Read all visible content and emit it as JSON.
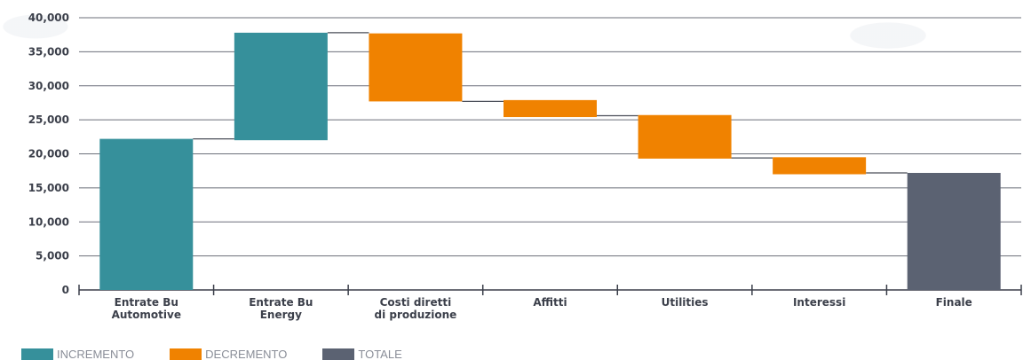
{
  "chart_data": {
    "type": "waterfall",
    "y_ticks": [
      "0",
      "5,000",
      "10,000",
      "15,000",
      "20,000",
      "25,000",
      "30,000",
      "35,000",
      "40,000"
    ],
    "ylim": [
      0,
      40000
    ],
    "grid": true,
    "categories": [
      [
        "Entrate Bu",
        "Automotive"
      ],
      [
        "Entrate Bu",
        "Energy"
      ],
      [
        "Costi diretti",
        "di produzione"
      ],
      [
        "Affitti"
      ],
      [
        "Utilities"
      ],
      [
        "Interessi"
      ],
      [
        "Finale"
      ]
    ],
    "bars": [
      {
        "kind": "increment",
        "start": 0,
        "end": 22200
      },
      {
        "kind": "increment",
        "start": 22000,
        "end": 37800
      },
      {
        "kind": "decrement",
        "start": 37700,
        "end": 27700
      },
      {
        "kind": "decrement",
        "start": 27900,
        "end": 25400
      },
      {
        "kind": "decrement",
        "start": 25700,
        "end": 19300
      },
      {
        "kind": "decrement",
        "start": 19500,
        "end": 17000
      },
      {
        "kind": "total",
        "start": 0,
        "end": 17200
      }
    ],
    "connectors": [
      22200,
      37800,
      27700,
      25600,
      19400,
      17200
    ]
  },
  "colors": {
    "increment": "#36909b",
    "decrement": "#f08200",
    "total": "#5b6272",
    "grid": "#6b6f7a",
    "axis": "#3b3f4a"
  },
  "legend": [
    {
      "kind": "increment",
      "label": "INCREMENTO"
    },
    {
      "kind": "decrement",
      "label": "DECREMENTO"
    },
    {
      "kind": "total",
      "label": "TOTALE"
    }
  ]
}
